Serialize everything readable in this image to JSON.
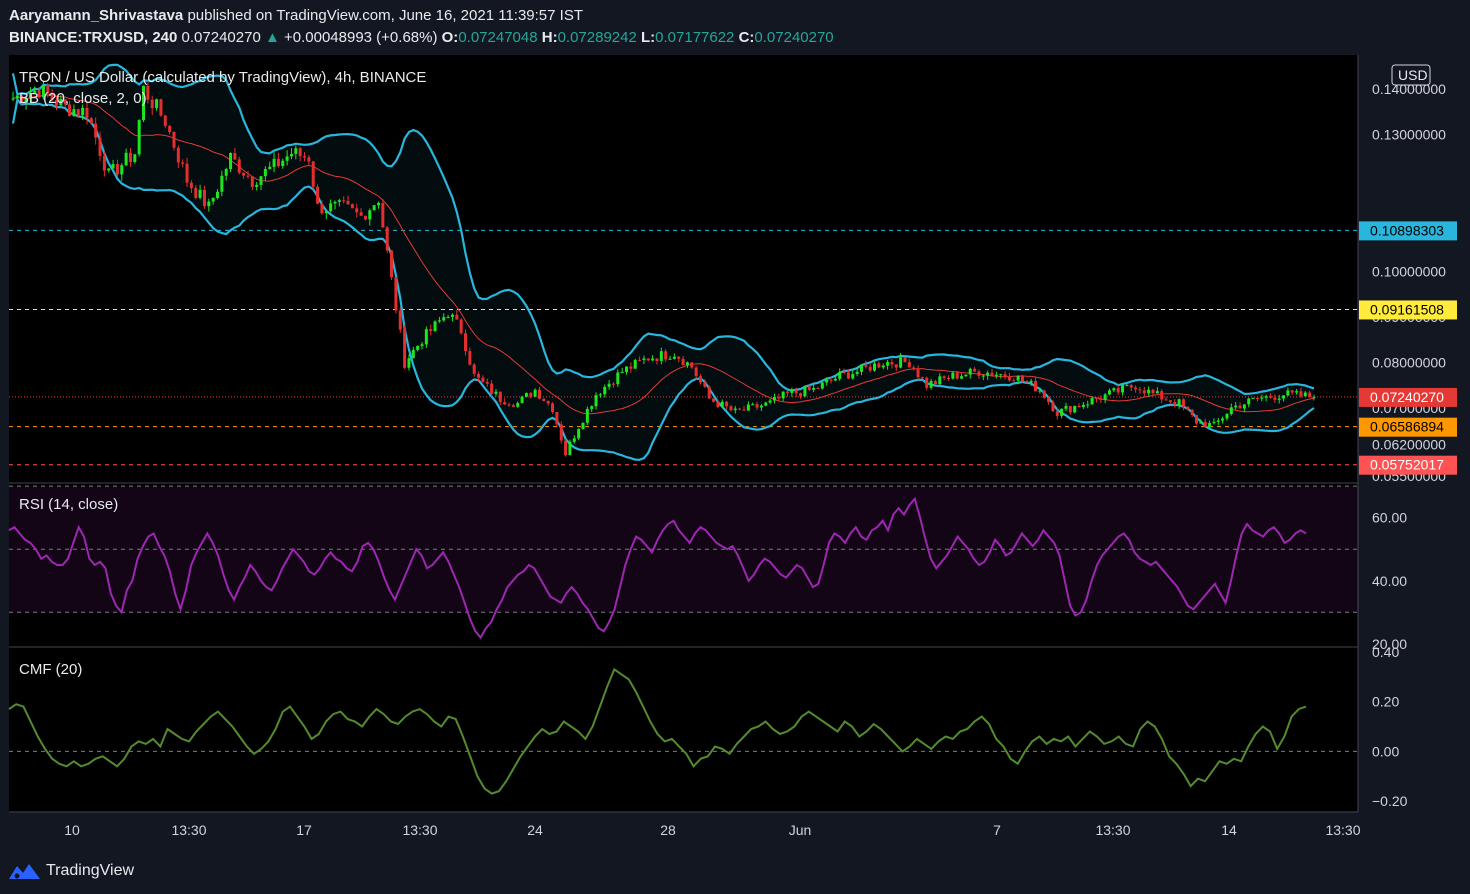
{
  "header": {
    "author": "Aaryamann_Shrivastava",
    "published": "published on TradingView.com, June 16, 2021 11:39:57 IST",
    "symbol": "BINANCE:TRXUSD, 240",
    "last": "0.07240270",
    "change": "+0.00048993 (+0.68%)",
    "o_label": "O:",
    "o": "0.07247048",
    "h_label": "H:",
    "h": "0.07289242",
    "l_label": "L:",
    "l": "0.07177622",
    "c_label": "C:",
    "c": "0.07240270"
  },
  "footer": {
    "brand": "TradingView",
    "logo_icon": "tradingview-logo-icon"
  },
  "colors": {
    "background": "#000000",
    "up": "#1ee61e",
    "down": "#e62e2e",
    "bb_band": "#29b6dc",
    "bb_basis": "#e53935",
    "rsi": "#9c27b0",
    "cmf": "#558b2f",
    "res1": "#29b6dc",
    "res2": "#ffeb3b",
    "sup1": "#ff9800",
    "sup2": "#ff5252"
  },
  "chart_data": [
    {
      "type": "candlestick",
      "title": "TRON / US Dollar (calculated by TradingView), 4h, BINANCE",
      "indicator": "BB (20, close, 2, 0)",
      "currency": "USD",
      "ylim": [
        0.0535,
        0.1475
      ],
      "y_ticks": [
        {
          "value": 0.14,
          "label": "0.14000000"
        },
        {
          "value": 0.13,
          "label": "0.13000000"
        },
        {
          "value": 0.1,
          "label": "0.10000000"
        },
        {
          "value": 0.09,
          "label": "0.09000000"
        },
        {
          "value": 0.08,
          "label": "0.08000000"
        },
        {
          "value": 0.07,
          "label": "0.07000000"
        },
        {
          "value": 0.062,
          "label": "0.06200000"
        },
        {
          "value": 0.055,
          "label": "0.05500000"
        }
      ],
      "price_lines": [
        {
          "value": 0.10898303,
          "label": "0.10898303",
          "color": "#29b6dc",
          "text": "#000000"
        },
        {
          "value": 0.09161508,
          "label": "0.09161508",
          "color": "#ffeb3b",
          "text": "#000000"
        },
        {
          "value": 0.0724027,
          "label": "0.07240270",
          "color": "#e53935",
          "text": "#ffffff",
          "dotted": true
        },
        {
          "value": 0.06586894,
          "label": "0.06586894",
          "color": "#ff9800",
          "text": "#000000"
        },
        {
          "value": 0.05752017,
          "label": "0.05752017",
          "color": "#ff5252",
          "text": "#ffffff"
        }
      ],
      "close_path": [
        [
          0,
          0.138
        ],
        [
          6,
          0.14
        ],
        [
          12,
          0.136
        ],
        [
          17,
          0.135
        ],
        [
          22,
          0.121
        ],
        [
          28,
          0.126
        ],
        [
          30,
          0.14
        ],
        [
          35,
          0.133
        ],
        [
          40,
          0.12
        ],
        [
          45,
          0.114
        ],
        [
          50,
          0.125
        ],
        [
          55,
          0.12
        ],
        [
          60,
          0.123
        ],
        [
          64,
          0.126
        ],
        [
          68,
          0.125
        ],
        [
          70,
          0.114
        ],
        [
          76,
          0.114
        ],
        [
          80,
          0.112
        ],
        [
          84,
          0.116
        ],
        [
          90,
          0.08
        ],
        [
          94,
          0.085
        ],
        [
          100,
          0.091
        ],
        [
          103,
          0.087
        ],
        [
          106,
          0.077
        ],
        [
          112,
          0.072
        ],
        [
          116,
          0.071
        ],
        [
          120,
          0.074
        ],
        [
          124,
          0.07
        ],
        [
          127,
          0.06
        ],
        [
          130,
          0.066
        ],
        [
          134,
          0.073
        ],
        [
          140,
          0.078
        ],
        [
          146,
          0.081
        ],
        [
          152,
          0.082
        ],
        [
          156,
          0.079
        ],
        [
          160,
          0.072
        ],
        [
          166,
          0.069
        ],
        [
          170,
          0.07
        ],
        [
          174,
          0.071
        ],
        [
          178,
          0.073
        ],
        [
          184,
          0.074
        ],
        [
          190,
          0.077
        ],
        [
          194,
          0.078
        ],
        [
          200,
          0.08
        ],
        [
          206,
          0.08
        ],
        [
          210,
          0.075
        ],
        [
          216,
          0.077
        ],
        [
          222,
          0.078
        ],
        [
          230,
          0.077
        ],
        [
          236,
          0.074
        ],
        [
          240,
          0.069
        ],
        [
          246,
          0.071
        ],
        [
          252,
          0.073
        ],
        [
          258,
          0.075
        ],
        [
          262,
          0.073
        ],
        [
          268,
          0.071
        ],
        [
          272,
          0.067
        ],
        [
          276,
          0.066
        ],
        [
          280,
          0.07
        ],
        [
          286,
          0.072
        ],
        [
          292,
          0.073
        ],
        [
          299,
          0.0724
        ]
      ],
      "n_candles": 300
    },
    {
      "type": "line",
      "title": "RSI (14, close)",
      "ylim": [
        19,
        71
      ],
      "y_ticks": [
        20,
        40,
        60
      ],
      "y_tick_labels": [
        "20.00",
        "40.00",
        "60.00"
      ],
      "bands": [
        30,
        50,
        70
      ],
      "series": [
        {
          "values": [
            56,
            57,
            55,
            53,
            52,
            50,
            47,
            48,
            46,
            45,
            45,
            47,
            52,
            57,
            54,
            47,
            45,
            46,
            44,
            36,
            32,
            30,
            37,
            40,
            47,
            51,
            54,
            55,
            51,
            48,
            43,
            36,
            31,
            37,
            45,
            49,
            52,
            55,
            52,
            48,
            42,
            37,
            34,
            38,
            41,
            45,
            43,
            40,
            38,
            37,
            40,
            44,
            47,
            50,
            48,
            46,
            43,
            42,
            44,
            47,
            49,
            47,
            46,
            44,
            43,
            46,
            51,
            52,
            50,
            46,
            41,
            37,
            34,
            38,
            42,
            46,
            50,
            48,
            44,
            45,
            47,
            49,
            46,
            42,
            38,
            33,
            28,
            24,
            22,
            25,
            27,
            31,
            34,
            38,
            40,
            42,
            43,
            45,
            44,
            41,
            38,
            35,
            34,
            33,
            36,
            38,
            36,
            33,
            31,
            28,
            25,
            24,
            27,
            31,
            38,
            45,
            50,
            54,
            53,
            51,
            49,
            53,
            56,
            58,
            59,
            56,
            54,
            52,
            55,
            57,
            56,
            54,
            52,
            51,
            50,
            51,
            48,
            44,
            40,
            42,
            45,
            47,
            46,
            44,
            42,
            41,
            43,
            45,
            44,
            41,
            38,
            39,
            45,
            52,
            55,
            54,
            52,
            55,
            57,
            54,
            53,
            56,
            57,
            59,
            56,
            61,
            63,
            61,
            64,
            66,
            60,
            53,
            47,
            44,
            46,
            48,
            51,
            54,
            52,
            50,
            47,
            45,
            46,
            49,
            53,
            51,
            48,
            49,
            52,
            55,
            53,
            51,
            53,
            56,
            54,
            52,
            48,
            40,
            32,
            29,
            30,
            34,
            40,
            45,
            48,
            50,
            52,
            54,
            55,
            53,
            49,
            47,
            46,
            45,
            46,
            44,
            42,
            40,
            38,
            35,
            32,
            31,
            33,
            35,
            37,
            39,
            36,
            33,
            40,
            48,
            55,
            58,
            56,
            55,
            54,
            56,
            57,
            55,
            52,
            53,
            55,
            56,
            55
          ]
        }
      ]
    },
    {
      "type": "line",
      "title": "CMF (20)",
      "ylim": [
        -0.22,
        0.4
      ],
      "y_ticks": [
        -0.2,
        0,
        0.2,
        0.4
      ],
      "y_tick_labels": [
        "−0.20",
        "0.00",
        "0.20",
        "0.40"
      ],
      "zero_line": 0,
      "series": [
        {
          "values": [
            0.17,
            0.19,
            0.18,
            0.12,
            0.06,
            0.01,
            -0.03,
            -0.05,
            -0.06,
            -0.04,
            -0.06,
            -0.05,
            -0.03,
            -0.02,
            -0.04,
            -0.06,
            -0.03,
            0.02,
            0.04,
            0.03,
            0.05,
            0.02,
            0.09,
            0.07,
            0.05,
            0.04,
            0.08,
            0.11,
            0.14,
            0.16,
            0.13,
            0.1,
            0.06,
            0.02,
            -0.01,
            0.01,
            0.04,
            0.09,
            0.16,
            0.18,
            0.14,
            0.1,
            0.05,
            0.07,
            0.12,
            0.15,
            0.16,
            0.13,
            0.12,
            0.1,
            0.14,
            0.17,
            0.15,
            0.12,
            0.11,
            0.14,
            0.16,
            0.17,
            0.15,
            0.12,
            0.1,
            0.14,
            0.13,
            0.06,
            -0.02,
            -0.1,
            -0.15,
            -0.17,
            -0.16,
            -0.12,
            -0.07,
            -0.02,
            0.02,
            0.06,
            0.09,
            0.07,
            0.08,
            0.12,
            0.1,
            0.08,
            0.05,
            0.1,
            0.18,
            0.26,
            0.33,
            0.31,
            0.29,
            0.24,
            0.18,
            0.12,
            0.07,
            0.04,
            0.05,
            0.02,
            -0.01,
            -0.06,
            -0.03,
            -0.02,
            0.02,
            0.01,
            -0.01,
            0.03,
            0.06,
            0.09,
            0.1,
            0.12,
            0.09,
            0.07,
            0.08,
            0.1,
            0.14,
            0.16,
            0.14,
            0.12,
            0.1,
            0.08,
            0.12,
            0.1,
            0.06,
            0.08,
            0.11,
            0.09,
            0.06,
            0.03,
            0.0,
            0.02,
            0.05,
            0.03,
            0.01,
            0.04,
            0.06,
            0.05,
            0.08,
            0.09,
            0.12,
            0.14,
            0.11,
            0.05,
            0.02,
            -0.03,
            -0.05,
            0.0,
            0.04,
            0.06,
            0.03,
            0.05,
            0.04,
            0.06,
            0.02,
            0.05,
            0.08,
            0.06,
            0.03,
            0.04,
            0.06,
            0.03,
            0.02,
            0.09,
            0.12,
            0.1,
            0.05,
            -0.02,
            -0.05,
            -0.09,
            -0.14,
            -0.11,
            -0.12,
            -0.08,
            -0.04,
            -0.05,
            -0.03,
            -0.04,
            0.02,
            0.07,
            0.1,
            0.08,
            0.01,
            0.06,
            0.14,
            0.17,
            0.18
          ]
        }
      ]
    }
  ],
  "x_axis": {
    "ticks": [
      {
        "label": "10",
        "x": 72
      },
      {
        "label": "13:30",
        "x": 189
      },
      {
        "label": "17",
        "x": 304
      },
      {
        "label": "13:30",
        "x": 420
      },
      {
        "label": "24",
        "x": 535
      },
      {
        "label": "28",
        "x": 668
      },
      {
        "label": "Jun",
        "x": 800
      },
      {
        "label": "7",
        "x": 997
      },
      {
        "label": "13:30",
        "x": 1113
      },
      {
        "label": "14",
        "x": 1229
      },
      {
        "label": "13:30",
        "x": 1343
      }
    ]
  }
}
